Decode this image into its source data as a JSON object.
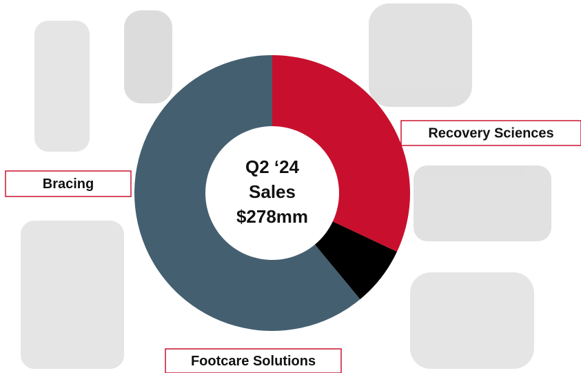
{
  "chart_data": {
    "type": "donut",
    "categories": [
      null,
      null,
      null
    ],
    "values": [
      32,
      7,
      61
    ],
    "colors": [
      "#c8102e",
      "#000000",
      "#445f70"
    ],
    "center_text": [
      "Q2 ‘24",
      "Sales",
      "$278mm"
    ],
    "annotations": [
      "Recovery Sciences",
      "Bracing",
      "Footcare Solutions"
    ]
  }
}
